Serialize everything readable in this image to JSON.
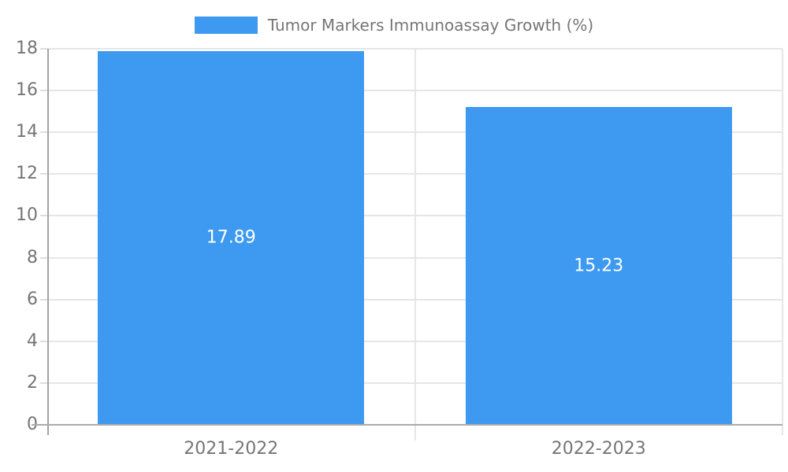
{
  "chart_data": {
    "type": "bar",
    "title": "Tumor Markers Immunoassay Growth (%)",
    "legend": "Tumor Markers Immunoassay Growth (%)",
    "legend_position": "top",
    "categories": [
      "2021-2022",
      "2022-2023"
    ],
    "values": [
      17.89,
      15.23
    ],
    "value_labels": [
      "17.89",
      "15.23"
    ],
    "xlabel": "",
    "ylabel": "",
    "ylim": [
      0,
      18
    ],
    "ytick_step": 2,
    "yticks": [
      0,
      2,
      4,
      6,
      8,
      10,
      12,
      14,
      16,
      18
    ],
    "grid": true,
    "colors": {
      "bar": "#3d9af0",
      "axis_text": "#757575",
      "value_text": "#ffffff",
      "gridline": "#e6e6e6",
      "axis_line": "#ababab",
      "background": "#ffffff"
    }
  }
}
